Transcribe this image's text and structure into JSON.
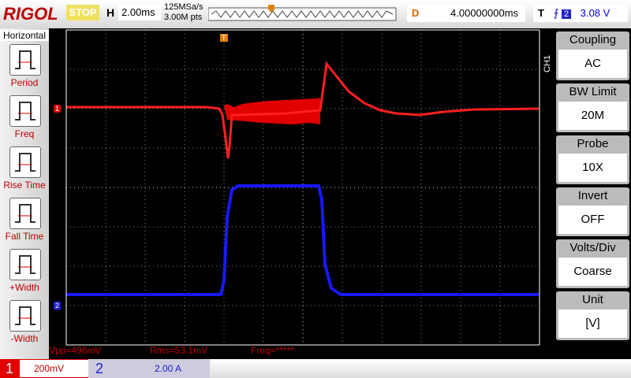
{
  "top_bar": {
    "brand": "RIGOL",
    "status": "STOP",
    "h_label": "H",
    "timebase": "2.00ms",
    "sample_rate": "125MSa/s",
    "points": "3.00M pts",
    "d_label": "D",
    "delay": "4.00000000ms",
    "t_label": "T",
    "trigger_channel": "2",
    "trigger_level": "3.08 V"
  },
  "left_menu": {
    "title": "Horizontal",
    "items": [
      "Period",
      "Freq",
      "Rise Time",
      "Fall Time",
      "+Width",
      "-Width"
    ]
  },
  "markers": {
    "ch1": "1",
    "ch2": "2",
    "trigger": "T"
  },
  "right_menu": {
    "channel": "CH1",
    "items": [
      {
        "label": "Coupling",
        "value": "AC"
      },
      {
        "label": "BW Limit",
        "value": "20M"
      },
      {
        "label": "Probe",
        "value": "10X"
      },
      {
        "label": "Invert",
        "value": "OFF"
      },
      {
        "label": "Volts/Div",
        "value": "Coarse"
      },
      {
        "label": "Unit",
        "value": "[V]"
      }
    ]
  },
  "measurements": [
    "Vpp=496mV",
    "Rms=53.1mV",
    "Freq=*****"
  ],
  "bottom_bar": {
    "ch1_number": "1",
    "ch1_scale": "200mV",
    "ch2_number": "2",
    "ch2_scale": "2.00 A"
  }
}
